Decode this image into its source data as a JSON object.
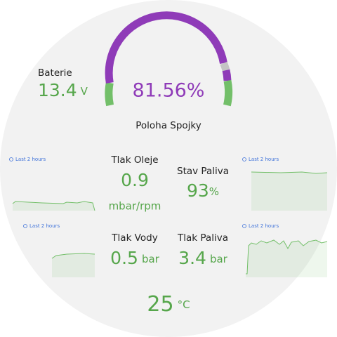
{
  "battery": {
    "label": "Baterie",
    "value": "13.4",
    "unit": "V"
  },
  "gauge": {
    "label": "Poloha Spojky",
    "value": "81.56%"
  },
  "panels": [
    {
      "time_range": "Last 2 hours"
    },
    {
      "time_range": "Last 2 hours"
    },
    {
      "time_range": "Last 2 hours"
    },
    {
      "time_range": "Last 2 hours"
    }
  ],
  "stats": [
    {
      "label": "Tlak Oleje",
      "value": "0.9",
      "unit": "mbar/rpm"
    },
    {
      "label": "Stav Paliva",
      "value": "93",
      "unit": "%"
    },
    {
      "label": "Tlak Vody",
      "value": "0.5",
      "unit": "bar"
    },
    {
      "label": "Tlak Paliva",
      "value": "3.4",
      "unit": "bar"
    }
  ],
  "temperature": {
    "value": "25",
    "unit": "°C"
  }
}
